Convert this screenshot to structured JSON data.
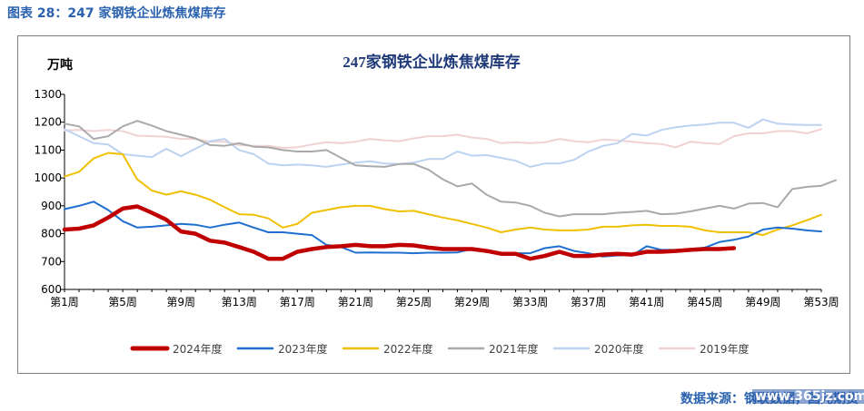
{
  "figure_caption": "图表 28：247 家钢铁企业炼焦煤库存",
  "source_text": "数据来源：钢联数据，国元期货",
  "watermark_text": "www.365jz.com",
  "chart_data": {
    "type": "line",
    "title": "247家钢铁企业炼焦煤库存",
    "ylabel": "万吨",
    "ylim": [
      600,
      1300
    ],
    "yticks": [
      600,
      700,
      800,
      900,
      1000,
      1100,
      1200,
      1300
    ],
    "xlim": [
      1,
      53
    ],
    "xticks": [
      1,
      5,
      9,
      13,
      17,
      21,
      25,
      29,
      33,
      37,
      41,
      45,
      49,
      53
    ],
    "xtick_labels": [
      "第1周",
      "第5周",
      "第9周",
      "第13周",
      "第17周",
      "第21周",
      "第25周",
      "第29周",
      "第33周",
      "第37周",
      "第41周",
      "第45周",
      "第49周",
      "第53周"
    ],
    "grid": false,
    "legend_position": "bottom",
    "series": [
      {
        "name": "2024年度",
        "color": "#c00000",
        "width": 4.5,
        "values": [
          815,
          818,
          830,
          858,
          890,
          898,
          875,
          850,
          808,
          800,
          775,
          768,
          752,
          735,
          710,
          710,
          735,
          745,
          752,
          755,
          760,
          755,
          755,
          760,
          758,
          750,
          745,
          745,
          745,
          738,
          728,
          728,
          710,
          720,
          735,
          720,
          720,
          725,
          728,
          725,
          735,
          735,
          738,
          742,
          745,
          745,
          748
        ]
      },
      {
        "name": "2023年度",
        "color": "#1f6fd0",
        "width": 2,
        "values": [
          888,
          900,
          915,
          885,
          845,
          822,
          825,
          830,
          835,
          832,
          822,
          832,
          840,
          822,
          805,
          805,
          800,
          795,
          760,
          752,
          732,
          733,
          732,
          732,
          730,
          732,
          732,
          733,
          745,
          740,
          730,
          730,
          730,
          748,
          755,
          738,
          730,
          718,
          722,
          722,
          755,
          742,
          742,
          745,
          750,
          770,
          778,
          790,
          815,
          822,
          818,
          812,
          808
        ]
      },
      {
        "name": "2022年度",
        "color": "#f0c000",
        "width": 2,
        "values": [
          1005,
          1022,
          1070,
          1090,
          1085,
          995,
          955,
          940,
          952,
          940,
          922,
          895,
          870,
          868,
          855,
          822,
          835,
          875,
          885,
          895,
          900,
          900,
          888,
          880,
          882,
          870,
          858,
          848,
          835,
          822,
          805,
          815,
          822,
          815,
          812,
          812,
          815,
          825,
          825,
          830,
          832,
          828,
          828,
          825,
          812,
          805,
          805,
          805,
          795,
          815,
          830,
          848,
          868
        ]
      },
      {
        "name": "2021年度",
        "color": "#a9a9a9",
        "width": 2,
        "values": [
          1195,
          1185,
          1140,
          1150,
          1185,
          1205,
          1188,
          1168,
          1155,
          1142,
          1118,
          1115,
          1125,
          1112,
          1110,
          1100,
          1095,
          1095,
          1100,
          1072,
          1045,
          1042,
          1040,
          1050,
          1050,
          1030,
          995,
          970,
          980,
          940,
          915,
          912,
          900,
          875,
          862,
          870,
          870,
          870,
          875,
          878,
          882,
          870,
          872,
          880,
          890,
          900,
          890,
          908,
          910,
          895,
          960,
          968,
          972,
          992
        ]
      },
      {
        "name": "2020年度",
        "color": "#bcd2f0",
        "width": 2,
        "values": [
          1175,
          1150,
          1125,
          1120,
          1085,
          1080,
          1075,
          1105,
          1078,
          1105,
          1132,
          1140,
          1100,
          1085,
          1052,
          1045,
          1048,
          1045,
          1040,
          1048,
          1055,
          1060,
          1052,
          1050,
          1055,
          1068,
          1068,
          1095,
          1080,
          1082,
          1072,
          1062,
          1040,
          1052,
          1052,
          1065,
          1095,
          1115,
          1125,
          1158,
          1152,
          1172,
          1182,
          1188,
          1192,
          1198,
          1198,
          1180,
          1210,
          1195,
          1192,
          1190,
          1190
        ]
      },
      {
        "name": "2019年度",
        "color": "#f0d2d2",
        "width": 2,
        "values": [
          1170,
          1172,
          1168,
          1172,
          1168,
          1152,
          1150,
          1148,
          1140,
          1140,
          1130,
          1130,
          1118,
          1115,
          1115,
          1108,
          1110,
          1120,
          1128,
          1125,
          1130,
          1140,
          1135,
          1132,
          1142,
          1150,
          1150,
          1155,
          1145,
          1140,
          1125,
          1128,
          1125,
          1128,
          1140,
          1132,
          1128,
          1138,
          1135,
          1130,
          1125,
          1122,
          1110,
          1130,
          1125,
          1122,
          1150,
          1160,
          1160,
          1168,
          1168,
          1160,
          1175
        ]
      }
    ]
  }
}
